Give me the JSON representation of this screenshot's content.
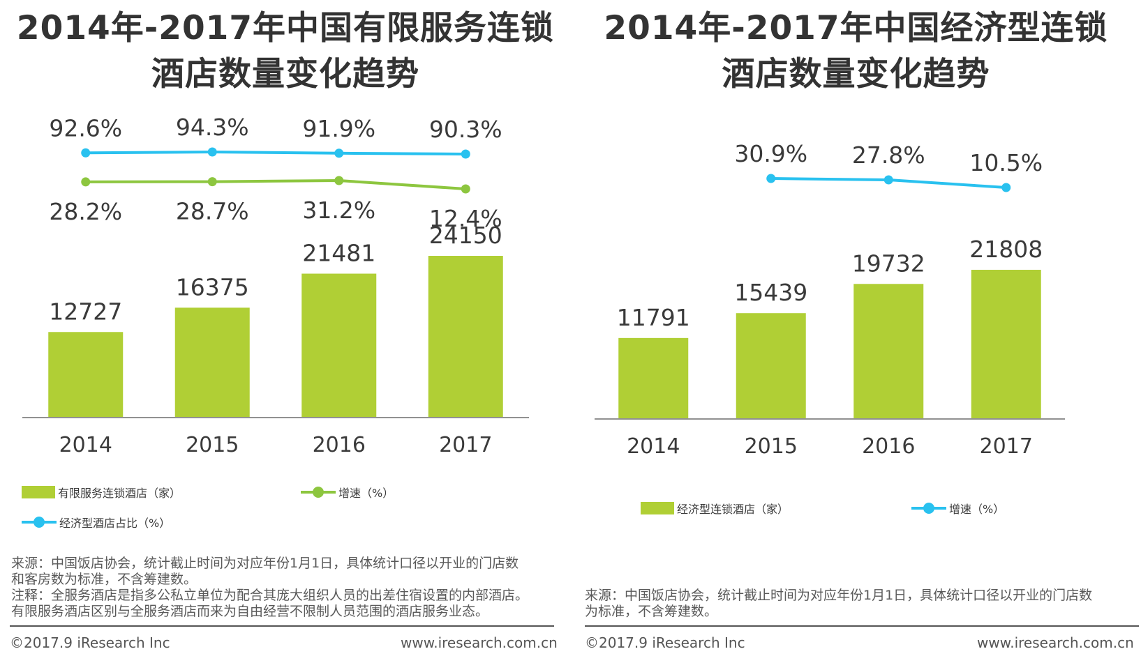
{
  "colors": {
    "bar": "#b0cf35",
    "green_line": "#8dc63f",
    "blue_line": "#29c1ef",
    "axis": "#6d6d6d"
  },
  "left": {
    "title_line1": "2014年-2017年中国有限服务连锁",
    "title_line2": "酒店数量变化趋势",
    "legend": {
      "bar_label": "有限服务连锁酒店（家）",
      "growth_label": "增速（%）",
      "share_label": "经济型酒店占比（%）"
    },
    "notes": [
      "来源：中国饭店协会，统计截止时间为对应年份1月1日，具体统计口径以开业的门店数",
      "和客房数为标准，不含筹建数。",
      "注释：全服务酒店是指多公私立单位为配合其庞大组织人员的出差住宿设置的内部酒店。",
      "有限服务酒店区别与全服务酒店而来为自由经营不限制人员范围的酒店服务业态。"
    ],
    "footer_left": "©2017.9 iResearch Inc",
    "footer_right": "www.iresearch.com.cn"
  },
  "right": {
    "title_line1": "2014年-2017年中国经济型连锁",
    "title_line2": "酒店数量变化趋势",
    "legend": {
      "bar_label": "经济型连锁酒店（家）",
      "growth_label": "增速（%）"
    },
    "notes": [
      "来源：中国饭店协会，统计截止时间为对应年份1月1日，具体统计口径以开业的门店数",
      "为标准，不含筹建数。"
    ],
    "footer_left": "©2017.9 iResearch Inc",
    "footer_right": "www.iresearch.com.cn"
  },
  "chart_data": [
    {
      "type": "bar",
      "title": "2014年-2017年中国有限服务连锁酒店数量变化趋势",
      "categories": [
        "2014",
        "2015",
        "2016",
        "2017"
      ],
      "series": [
        {
          "name": "有限服务连锁酒店（家）",
          "type": "bar",
          "values": [
            12727,
            16375,
            21481,
            24150
          ],
          "labels": [
            "12727",
            "16375",
            "21481",
            "24150"
          ]
        },
        {
          "name": "经济型酒店占比（%）",
          "type": "line",
          "values": [
            92.6,
            94.3,
            91.9,
            90.3
          ],
          "labels": [
            "92.6%",
            "94.3%",
            "91.9%",
            "90.3%"
          ],
          "color": "#29c1ef"
        },
        {
          "name": "增速（%）",
          "type": "line",
          "values": [
            28.2,
            28.7,
            31.2,
            12.4
          ],
          "labels": [
            "28.2%",
            "28.7%",
            "31.2%",
            "12.4%"
          ],
          "color": "#8dc63f"
        }
      ],
      "xlabel": "",
      "ylabel": "",
      "legend_position": "bottom",
      "grid": false
    },
    {
      "type": "bar",
      "title": "2014年-2017年中国经济型连锁酒店数量变化趋势",
      "categories": [
        "2014",
        "2015",
        "2016",
        "2017"
      ],
      "series": [
        {
          "name": "经济型连锁酒店（家）",
          "type": "bar",
          "values": [
            11791,
            15439,
            19732,
            21808
          ],
          "labels": [
            "11791",
            "15439",
            "19732",
            "21808"
          ]
        },
        {
          "name": "增速（%）",
          "type": "line",
          "values": [
            null,
            30.9,
            27.8,
            10.5
          ],
          "labels": [
            "",
            "30.9%",
            "27.8%",
            "10.5%"
          ],
          "color": "#29c1ef"
        }
      ],
      "xlabel": "",
      "ylabel": "",
      "legend_position": "bottom",
      "grid": false
    }
  ]
}
